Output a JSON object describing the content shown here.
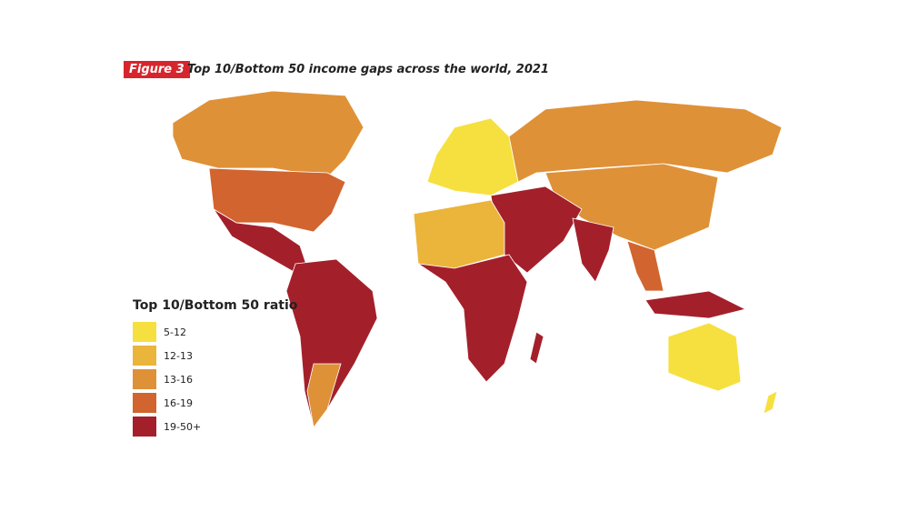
{
  "figure_label": "Figure 3",
  "title": "Top 10/Bottom 50 income gaps across the world, 2021",
  "legend": {
    "title": "Top 10/Bottom 50 ratio",
    "items": [
      {
        "label": "5-12",
        "color": "#f6e03f"
      },
      {
        "label": "12-13",
        "color": "#ebb43b"
      },
      {
        "label": "13-16",
        "color": "#df9138"
      },
      {
        "label": "16-19",
        "color": "#d2642f"
      },
      {
        "label": "19-50+",
        "color": "#a3202b"
      }
    ]
  }
}
